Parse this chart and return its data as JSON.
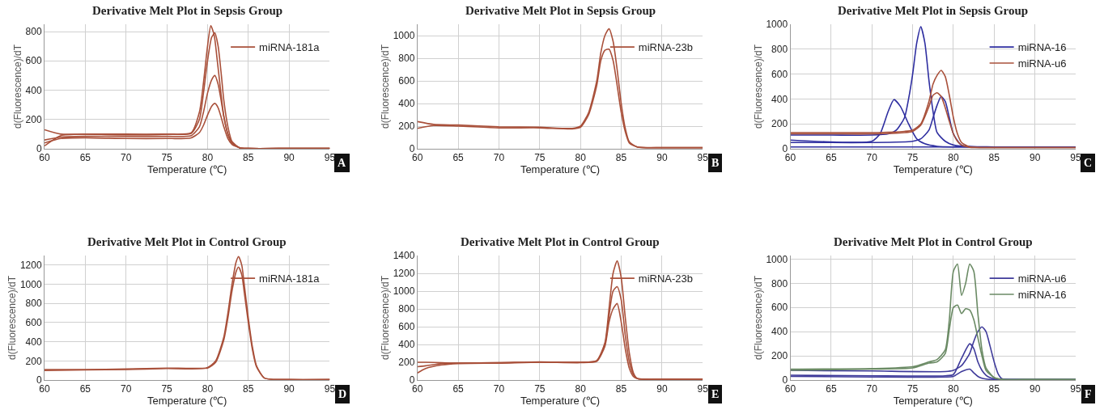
{
  "chart_data": [
    {
      "type": "line",
      "title": "Derivative Melt Plot in Sepsis Group",
      "xlabel": "Temperature (℃)",
      "ylabel": "d(Fluorescence)/dT",
      "xlim": [
        60,
        95
      ],
      "xticks": [
        60,
        65,
        70,
        75,
        80,
        85,
        90,
        95
      ],
      "ylim": [
        0,
        850
      ],
      "yticks": [
        0,
        200,
        400,
        600,
        800
      ],
      "grid": true,
      "legend": "top right",
      "annotations": [
        "A"
      ],
      "series": [
        {
          "name": "miRNA-181a",
          "color": "#a9503a",
          "x": [
            60,
            62,
            65,
            70,
            75,
            78,
            79,
            79.5,
            80,
            80.4,
            80.8,
            81.2,
            81.6,
            82,
            82.5,
            83,
            84,
            85,
            90,
            95
          ],
          "values": [
            130,
            100,
            100,
            95,
            100,
            110,
            250,
            450,
            700,
            840,
            780,
            600,
            400,
            220,
            100,
            40,
            5,
            2,
            2,
            2
          ]
        },
        {
          "color": "#a9503a",
          "x": [
            60,
            62,
            65,
            70,
            75,
            78,
            79,
            79.5,
            80,
            80.5,
            80.9,
            81.3,
            81.7,
            82,
            82.5,
            83,
            84,
            85,
            90,
            95
          ],
          "values": [
            20,
            90,
            100,
            100,
            100,
            105,
            200,
            380,
            600,
            760,
            790,
            700,
            500,
            330,
            150,
            50,
            5,
            2,
            2,
            2
          ]
        },
        {
          "color": "#a9503a",
          "x": [
            60,
            62,
            65,
            70,
            75,
            78,
            79,
            79.5,
            80,
            80.5,
            80.9,
            81.3,
            81.7,
            82,
            82.5,
            83,
            84,
            85,
            90,
            95
          ],
          "values": [
            60,
            80,
            85,
            85,
            85,
            90,
            150,
            250,
            380,
            470,
            500,
            440,
            320,
            220,
            100,
            40,
            5,
            2,
            2,
            2
          ]
        },
        {
          "color": "#a9503a",
          "x": [
            60,
            62,
            65,
            70,
            75,
            78,
            79,
            79.5,
            80,
            80.5,
            80.9,
            81.3,
            81.7,
            82,
            82.5,
            83,
            84,
            85,
            90,
            95
          ],
          "values": [
            40,
            70,
            75,
            70,
            70,
            75,
            110,
            160,
            230,
            290,
            310,
            280,
            210,
            150,
            70,
            30,
            5,
            2,
            2,
            2
          ]
        }
      ]
    },
    {
      "type": "line",
      "title": "Derivative Melt Plot in Sepsis Group",
      "xlabel": "Temperature (℃)",
      "ylabel": "d(Fluorescence)/dT",
      "xlim": [
        60,
        95
      ],
      "xticks": [
        60,
        65,
        70,
        75,
        80,
        85,
        90,
        95
      ],
      "ylim": [
        0,
        1100
      ],
      "yticks": [
        0,
        200,
        400,
        600,
        800,
        1000
      ],
      "grid": true,
      "legend": "top right",
      "annotations": [
        "B"
      ],
      "series": [
        {
          "name": "miRNA-23b",
          "color": "#a9503a",
          "x": [
            60,
            62,
            65,
            70,
            75,
            79,
            80,
            81,
            82,
            82.5,
            83,
            83.5,
            84,
            84.5,
            85,
            85.5,
            86,
            87,
            90,
            95
          ],
          "values": [
            240,
            215,
            210,
            195,
            190,
            180,
            200,
            320,
            600,
            850,
            1000,
            1060,
            950,
            700,
            400,
            180,
            60,
            15,
            10,
            10
          ]
        },
        {
          "color": "#a9503a",
          "x": [
            60,
            62,
            65,
            70,
            75,
            79,
            80,
            81,
            82,
            82.5,
            83,
            83.5,
            84,
            84.5,
            85,
            85.5,
            86,
            87,
            90,
            95
          ],
          "values": [
            180,
            205,
            200,
            185,
            185,
            175,
            190,
            300,
            560,
            780,
            870,
            880,
            780,
            560,
            320,
            150,
            50,
            15,
            10,
            10
          ]
        }
      ]
    },
    {
      "type": "line",
      "title": "Derivative Melt Plot in Sepsis Group",
      "xlabel": "Temperature (℃)",
      "ylabel": "d(Fluorescence)/dT",
      "xlim": [
        60,
        95
      ],
      "xticks": [
        60,
        65,
        70,
        75,
        80,
        85,
        90,
        95
      ],
      "ylim": [
        0,
        1000
      ],
      "yticks": [
        0,
        200,
        400,
        600,
        800,
        1000
      ],
      "grid": true,
      "legend": "top right",
      "annotations": [
        "C"
      ],
      "series": [
        {
          "name": "miRNA-16",
          "color": "#2e2ea0",
          "x": [
            60,
            65,
            70,
            72,
            73,
            74,
            74.5,
            75,
            75.5,
            76,
            76.5,
            77,
            77.5,
            78,
            79,
            80,
            82,
            85,
            95
          ],
          "values": [
            110,
            110,
            110,
            120,
            150,
            250,
            400,
            600,
            850,
            980,
            850,
            550,
            300,
            130,
            60,
            30,
            15,
            15,
            15
          ]
        },
        {
          "color": "#2e2ea0",
          "x": [
            60,
            65,
            70,
            71,
            72,
            72.7,
            73.5,
            74.5,
            75.5,
            76.5,
            78,
            80,
            85,
            95
          ],
          "values": [
            70,
            55,
            60,
            120,
            300,
            395,
            340,
            200,
            80,
            40,
            20,
            15,
            15,
            15
          ]
        },
        {
          "color": "#2e2ea0",
          "x": [
            60,
            65,
            70,
            75,
            76,
            77,
            77.5,
            78,
            78.5,
            79,
            79.5,
            80,
            81,
            85,
            95
          ],
          "values": [
            50,
            50,
            50,
            60,
            80,
            150,
            250,
            350,
            420,
            380,
            250,
            120,
            30,
            15,
            15
          ]
        },
        {
          "color": "#2e2ea0",
          "x": [
            60,
            75,
            95
          ],
          "values": [
            15,
            15,
            15
          ]
        },
        {
          "name": "miRNA-u6",
          "color": "#a9503a",
          "x": [
            60,
            65,
            70,
            74,
            75,
            76,
            77,
            77.5,
            78,
            78.5,
            79,
            79.5,
            80,
            80.5,
            81,
            82,
            85,
            95
          ],
          "values": [
            130,
            130,
            130,
            140,
            150,
            200,
            380,
            520,
            590,
            630,
            580,
            430,
            250,
            120,
            50,
            15,
            10,
            10
          ]
        },
        {
          "color": "#a9503a",
          "x": [
            60,
            65,
            70,
            74,
            75,
            76,
            77,
            77.5,
            78,
            78.5,
            79,
            79.5,
            80,
            80.5,
            81,
            82,
            85,
            95
          ],
          "values": [
            120,
            120,
            120,
            130,
            140,
            190,
            340,
            430,
            450,
            420,
            330,
            220,
            120,
            60,
            30,
            12,
            10,
            10
          ]
        }
      ]
    },
    {
      "type": "line",
      "title": "Derivative Melt Plot in Control Group",
      "xlabel": "Temperature (℃)",
      "ylabel": "d(Fluorescence)/dT",
      "xlim": [
        60,
        95
      ],
      "xticks": [
        60,
        65,
        70,
        75,
        80,
        85,
        90,
        95
      ],
      "ylim": [
        0,
        1300
      ],
      "yticks": [
        0,
        200,
        400,
        600,
        800,
        1000,
        1200
      ],
      "grid": true,
      "legend": "top right",
      "annotations": [
        "D"
      ],
      "series": [
        {
          "name": "miRNA-181a",
          "color": "#a9503a",
          "x": [
            60,
            65,
            70,
            75,
            80,
            81,
            82,
            82.5,
            83,
            83.5,
            83.8,
            84.2,
            84.5,
            85,
            85.5,
            86,
            87,
            90,
            95
          ],
          "values": [
            110,
            110,
            115,
            125,
            130,
            200,
            450,
            700,
            1000,
            1230,
            1290,
            1200,
            1000,
            650,
            350,
            150,
            20,
            5,
            5
          ]
        },
        {
          "color": "#a9503a",
          "x": [
            60,
            65,
            70,
            75,
            80,
            81,
            82,
            82.5,
            83,
            83.5,
            83.8,
            84.2,
            84.5,
            85,
            85.5,
            86,
            87,
            90,
            95
          ],
          "values": [
            100,
            105,
            110,
            120,
            125,
            185,
            420,
            650,
            930,
            1130,
            1180,
            1100,
            920,
            600,
            320,
            140,
            20,
            5,
            5
          ]
        }
      ]
    },
    {
      "type": "line",
      "title": "Derivative Melt Plot in Control Group",
      "xlabel": "Temperature (℃)",
      "ylabel": "d(Fluorescence)/dT",
      "xlim": [
        60,
        95
      ],
      "xticks": [
        60,
        65,
        70,
        75,
        80,
        85,
        90,
        95
      ],
      "ylim": [
        0,
        1400
      ],
      "yticks": [
        0,
        200,
        400,
        600,
        800,
        1000,
        1200,
        1400
      ],
      "grid": true,
      "legend": "top right",
      "annotations": [
        "E"
      ],
      "series": [
        {
          "name": "miRNA-23b",
          "color": "#a9503a",
          "x": [
            60,
            61,
            63,
            65,
            70,
            75,
            80,
            82,
            83,
            83.5,
            84,
            84.5,
            85,
            85.5,
            86,
            86.5,
            87,
            90,
            95
          ],
          "values": [
            200,
            200,
            195,
            190,
            195,
            205,
            200,
            220,
            420,
            800,
            1200,
            1340,
            1150,
            700,
            300,
            80,
            15,
            10,
            10
          ]
        },
        {
          "color": "#a9503a",
          "x": [
            60,
            61,
            63,
            65,
            70,
            75,
            80,
            82,
            83,
            83.5,
            84,
            84.5,
            85,
            85.5,
            86,
            86.5,
            87,
            90,
            95
          ],
          "values": [
            150,
            160,
            185,
            190,
            195,
            200,
            200,
            215,
            400,
            720,
            1000,
            1050,
            900,
            500,
            200,
            60,
            15,
            10,
            10
          ]
        },
        {
          "color": "#a9503a",
          "x": [
            60,
            61,
            63,
            65,
            70,
            75,
            80,
            82,
            83,
            83.5,
            84,
            84.5,
            85,
            85.5,
            86,
            86.5,
            87,
            90,
            95
          ],
          "values": [
            80,
            130,
            170,
            185,
            190,
            200,
            195,
            210,
            380,
            650,
            800,
            860,
            650,
            350,
            130,
            40,
            15,
            10,
            10
          ]
        }
      ]
    },
    {
      "type": "line",
      "title": "Derivative Melt Plot in Control Group",
      "xlabel": "Temperature (℃)",
      "ylabel": "d(Fluorescence)/dT",
      "xlim": [
        60,
        95
      ],
      "xticks": [
        60,
        65,
        70,
        75,
        80,
        85,
        90,
        95
      ],
      "ylim": [
        0,
        1030
      ],
      "yticks": [
        0,
        200,
        400,
        600,
        800,
        1000
      ],
      "grid": true,
      "legend": "top right",
      "annotations": [
        "F"
      ],
      "series": [
        {
          "name": "miRNA-u6",
          "color": "#3e3a9a",
          "x": [
            60,
            70,
            79,
            80,
            81,
            82,
            82.5,
            83,
            83.5,
            84,
            84.5,
            85,
            85.5,
            86,
            90,
            95
          ],
          "values": [
            80,
            75,
            70,
            80,
            120,
            220,
            320,
            400,
            440,
            400,
            280,
            150,
            50,
            10,
            5,
            5
          ]
        },
        {
          "color": "#3e3a9a",
          "x": [
            60,
            70,
            79,
            80,
            81,
            82,
            82.5,
            83,
            83.5,
            84,
            84.5,
            85,
            85.5,
            86,
            90,
            95
          ],
          "values": [
            40,
            35,
            35,
            45,
            180,
            300,
            260,
            150,
            80,
            40,
            20,
            10,
            5,
            5,
            5,
            5
          ]
        },
        {
          "color": "#3e3a9a",
          "x": [
            60,
            70,
            79,
            80,
            81,
            82,
            82.5,
            83,
            83.5,
            84,
            84.5,
            85,
            85.5,
            86,
            90,
            95
          ],
          "values": [
            30,
            25,
            25,
            30,
            70,
            90,
            60,
            30,
            15,
            8,
            5,
            5,
            5,
            5,
            5,
            5
          ]
        },
        {
          "name": "miRNA-16",
          "color": "#6a8a64",
          "x": [
            60,
            70,
            75,
            77,
            78,
            79,
            79.5,
            80,
            80.5,
            81,
            81.5,
            82,
            82.5,
            83,
            83.5,
            84,
            85,
            86,
            90,
            95
          ],
          "values": [
            90,
            95,
            110,
            150,
            170,
            250,
            500,
            900,
            960,
            700,
            800,
            960,
            900,
            550,
            250,
            100,
            20,
            5,
            5,
            5
          ]
        },
        {
          "color": "#6a8a64",
          "x": [
            60,
            70,
            75,
            77,
            78,
            79,
            79.5,
            80,
            80.5,
            81,
            81.5,
            82,
            82.5,
            83,
            83.5,
            84,
            85,
            86,
            90,
            95
          ],
          "values": [
            80,
            90,
            100,
            140,
            150,
            220,
            420,
            600,
            620,
            550,
            590,
            580,
            500,
            350,
            200,
            80,
            20,
            5,
            5,
            5
          ]
        }
      ]
    }
  ]
}
